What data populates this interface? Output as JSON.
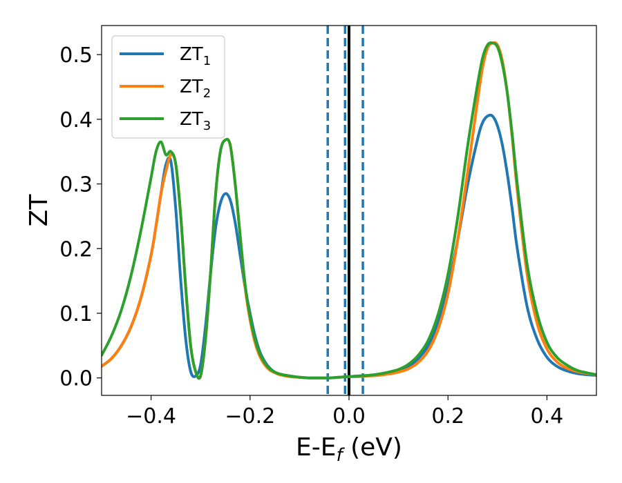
{
  "chart_data": {
    "type": "line",
    "xlabel": "E-E",
    "xlabel_sub": "f",
    "xlabel_unit": " (eV)",
    "ylabel": "ZT",
    "xlim": [
      -0.5,
      0.5
    ],
    "ylim": [
      -0.027,
      0.545
    ],
    "xticks": [
      -0.4,
      -0.2,
      0.0,
      0.2,
      0.4
    ],
    "xtick_labels": [
      "−0.4",
      "−0.2",
      "0.0",
      "0.2",
      "0.4"
    ],
    "yticks": [
      0.0,
      0.1,
      0.2,
      0.3,
      0.4,
      0.5
    ],
    "ytick_labels": [
      "0.0",
      "0.1",
      "0.2",
      "0.3",
      "0.4",
      "0.5"
    ],
    "legend_position": "top-left",
    "grid": false,
    "vlines": [
      {
        "x": 0.0,
        "style": "solid",
        "color": "#000000"
      },
      {
        "x": -0.043,
        "style": "dashed",
        "color": "#1f77b4"
      },
      {
        "x": -0.008,
        "style": "dashed",
        "color": "#1f77b4"
      },
      {
        "x": 0.028,
        "style": "dashed",
        "color": "#1f77b4"
      }
    ],
    "x": [
      -0.5,
      -0.48,
      -0.46,
      -0.44,
      -0.42,
      -0.4,
      -0.39,
      -0.38,
      -0.37,
      -0.36,
      -0.35,
      -0.34,
      -0.33,
      -0.32,
      -0.31,
      -0.3,
      -0.29,
      -0.28,
      -0.27,
      -0.26,
      -0.25,
      -0.24,
      -0.23,
      -0.22,
      -0.21,
      -0.2,
      -0.19,
      -0.18,
      -0.17,
      -0.16,
      -0.15,
      -0.14,
      -0.12,
      -0.1,
      -0.08,
      -0.06,
      -0.04,
      -0.02,
      0.0,
      0.02,
      0.04,
      0.06,
      0.08,
      0.1,
      0.12,
      0.14,
      0.16,
      0.18,
      0.2,
      0.22,
      0.24,
      0.26,
      0.27,
      0.28,
      0.29,
      0.3,
      0.31,
      0.32,
      0.33,
      0.34,
      0.36,
      0.38,
      0.4,
      0.42,
      0.44,
      0.46,
      0.48,
      0.5
    ],
    "series": [
      {
        "name": "ZT",
        "name_sub": "1",
        "color": "#1f77b4",
        "values": [
          0.018,
          0.03,
          0.05,
          0.08,
          0.125,
          0.19,
          0.235,
          0.285,
          0.33,
          0.335,
          0.26,
          0.15,
          0.06,
          0.01,
          0.003,
          0.02,
          0.08,
          0.16,
          0.23,
          0.27,
          0.285,
          0.275,
          0.24,
          0.19,
          0.14,
          0.1,
          0.065,
          0.04,
          0.025,
          0.015,
          0.009,
          0.006,
          0.003,
          0.001,
          0.0,
          0.0,
          0.0,
          0.001,
          0.002,
          0.003,
          0.004,
          0.005,
          0.007,
          0.011,
          0.018,
          0.03,
          0.05,
          0.085,
          0.14,
          0.215,
          0.3,
          0.37,
          0.395,
          0.405,
          0.405,
          0.39,
          0.36,
          0.315,
          0.26,
          0.2,
          0.11,
          0.06,
          0.032,
          0.018,
          0.011,
          0.007,
          0.005,
          0.004
        ]
      },
      {
        "name": "ZT",
        "name_sub": "2",
        "color": "#ff7f0e",
        "values": [
          0.018,
          0.03,
          0.05,
          0.08,
          0.125,
          0.19,
          0.235,
          0.285,
          0.32,
          0.345,
          0.33,
          0.25,
          0.14,
          0.05,
          0.01,
          0.003,
          0.06,
          0.16,
          0.28,
          0.35,
          0.368,
          0.36,
          0.3,
          0.22,
          0.14,
          0.09,
          0.055,
          0.033,
          0.02,
          0.012,
          0.008,
          0.005,
          0.002,
          0.001,
          0.0,
          0.0,
          0.0,
          0.001,
          0.002,
          0.002,
          0.003,
          0.004,
          0.006,
          0.009,
          0.014,
          0.024,
          0.042,
          0.075,
          0.13,
          0.215,
          0.32,
          0.43,
          0.48,
          0.51,
          0.518,
          0.515,
          0.49,
          0.44,
          0.37,
          0.29,
          0.16,
          0.085,
          0.045,
          0.025,
          0.015,
          0.01,
          0.007,
          0.005
        ]
      },
      {
        "name": "ZT",
        "name_sub": "3",
        "color": "#2ca02c",
        "values": [
          0.035,
          0.065,
          0.105,
          0.16,
          0.23,
          0.31,
          0.35,
          0.365,
          0.345,
          0.35,
          0.33,
          0.25,
          0.14,
          0.05,
          0.01,
          0.003,
          0.06,
          0.16,
          0.28,
          0.35,
          0.368,
          0.36,
          0.3,
          0.22,
          0.145,
          0.095,
          0.06,
          0.037,
          0.023,
          0.014,
          0.009,
          0.006,
          0.003,
          0.001,
          0.0,
          0.0,
          0.0,
          0.001,
          0.002,
          0.003,
          0.004,
          0.006,
          0.009,
          0.013,
          0.021,
          0.035,
          0.058,
          0.098,
          0.16,
          0.25,
          0.36,
          0.455,
          0.495,
          0.515,
          0.518,
          0.512,
          0.485,
          0.44,
          0.375,
          0.3,
          0.175,
          0.1,
          0.055,
          0.032,
          0.02,
          0.012,
          0.008,
          0.005
        ]
      }
    ]
  }
}
